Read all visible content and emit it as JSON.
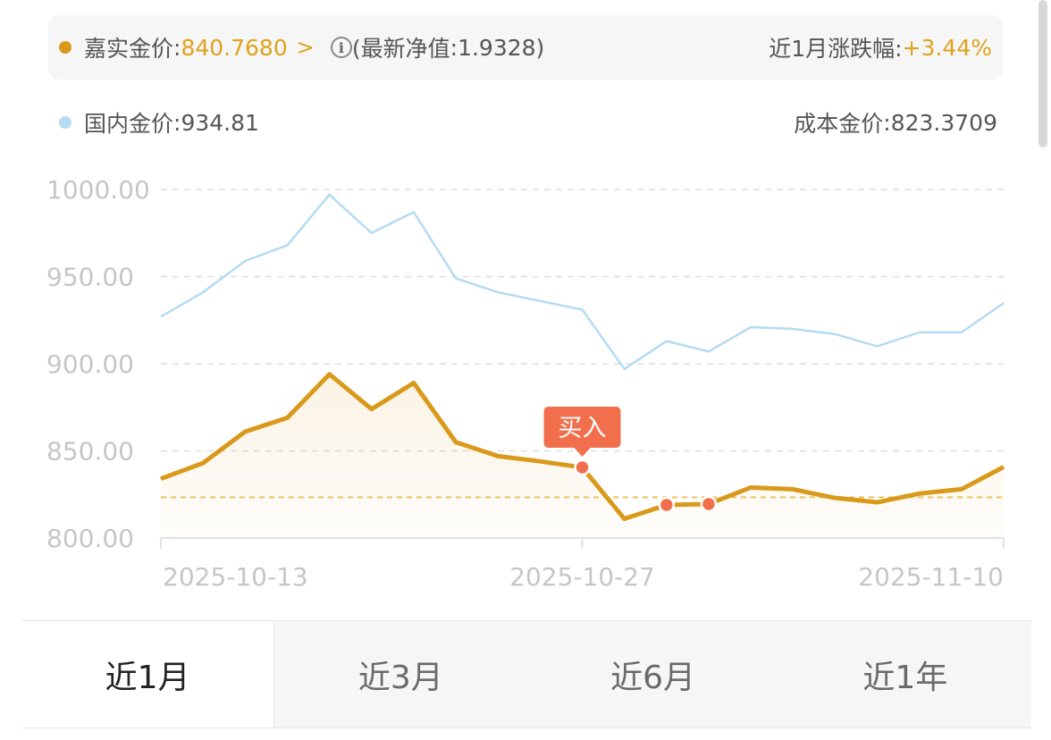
{
  "header": {
    "fund_name": "嘉实金价",
    "fund_price": "840.7680",
    "nav_label": "(最新净值",
    "nav_value": "1.9328",
    "nav_close": ")",
    "change_label": "近1月涨跌幅:",
    "change_value": "+3.44%"
  },
  "subheader": {
    "domestic_label": "国内金价",
    "domestic_value": "934.81",
    "cost_label": "成本金价",
    "cost_value": "823.3709"
  },
  "colors": {
    "fund": "#d99a1c",
    "domestic": "#b4dbf2",
    "buy": "#f26f4e",
    "cost": "#eec35c"
  },
  "icons": {
    "chevron": "chevron-right-icon",
    "info": "info-icon"
  },
  "chart_data": {
    "type": "line",
    "ylim": [
      800,
      1000
    ],
    "yticks": [
      "1000.00",
      "950.00",
      "900.00",
      "850.00",
      "800.00"
    ],
    "xticks": [
      "2025-10-13",
      "2025-10-27",
      "2025-11-10"
    ],
    "grid": true,
    "series": [
      {
        "name": "嘉实金价",
        "values": [
          834,
          843,
          861,
          869,
          894,
          874,
          889,
          855,
          847,
          844,
          840.5,
          811,
          819,
          819.5,
          829,
          828,
          823,
          820.5,
          825.5,
          828,
          840.768
        ]
      },
      {
        "name": "国内金价",
        "values": [
          927,
          941,
          959,
          968,
          997,
          975,
          987,
          949,
          941,
          936,
          931,
          897,
          913,
          907,
          921,
          920,
          917,
          910,
          918,
          918,
          934.81
        ]
      }
    ],
    "cost_line": 823.3709,
    "buy_marker": {
      "label": "买入",
      "index": 10
    },
    "trade_points": [
      10,
      12,
      13
    ]
  },
  "tabs": [
    "近1月",
    "近3月",
    "近6月",
    "近1年"
  ]
}
